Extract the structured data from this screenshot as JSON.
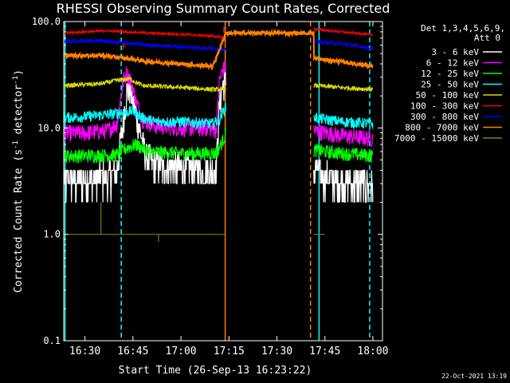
{
  "chart_data": {
    "type": "line",
    "title": "RHESSI Observing Summary Count Rates, Corrected",
    "xlabel": "Start Time (26-Sep-13 16:23:22)",
    "ylabel_main": "Corrected Count Rate (s",
    "ylabel_sup": "-1",
    "ylabel_end": " detector",
    "ylabel_sup2": "-1",
    "ylabel_close": ")",
    "y_scale": "log",
    "ylim": [
      0.1,
      100
    ],
    "xlim": [
      "16:23:22",
      "18:03:00"
    ],
    "x_ticks": [
      "16:30",
      "16:45",
      "17:00",
      "17:15",
      "17:30",
      "17:45",
      "18:00"
    ],
    "y_ticks": [
      "0.1",
      "1.0",
      "10.0",
      "100.0"
    ],
    "legend_title": [
      "Det 1,3,4,5,6,9,",
      "Att 0"
    ],
    "legend_placement": "right",
    "timestamp": "22-Oct-2021 13:19",
    "flags": [
      "F",
      "F"
    ],
    "gaps": [
      [
        "17:14:00",
        "17:41:30"
      ]
    ],
    "vlines": [
      {
        "time": "16:23:45",
        "color": "#00ffff",
        "style": "solid"
      },
      {
        "time": "16:41:20",
        "color": "#00ffff",
        "style": "dashed"
      },
      {
        "time": "17:13:50",
        "color": "#ff8000",
        "style": "solid"
      },
      {
        "time": "17:40:30",
        "color": "#ff8000",
        "style": "dashed"
      },
      {
        "time": "17:43:10",
        "color": "#00ffff",
        "style": "solid"
      },
      {
        "time": "17:59:00",
        "color": "#00ffff",
        "style": "dashed"
      }
    ],
    "series": [
      {
        "name": "3 - 6 keV",
        "color": "#ffffff",
        "points": [
          [
            "16:23:22",
            3.2
          ],
          [
            "16:30",
            3.2
          ],
          [
            "16:37",
            3.6
          ],
          [
            "16:40",
            4.0
          ],
          [
            "16:42",
            12
          ],
          [
            "16:43",
            22
          ],
          [
            "16:44",
            24
          ],
          [
            "16:45",
            18
          ],
          [
            "16:47",
            10
          ],
          [
            "16:49",
            5.5
          ],
          [
            "16:52",
            4.5
          ],
          [
            "17:00",
            4.2
          ],
          [
            "17:08",
            4.0
          ],
          [
            "17:11",
            3.8
          ],
          [
            "17:12",
            16
          ],
          [
            "17:13",
            25
          ],
          [
            "17:14",
            28
          ],
          [
            "17:41:30",
            4.0
          ],
          [
            "17:45",
            3.5
          ],
          [
            "17:55",
            3.0
          ],
          [
            "18:00",
            3.0
          ]
        ]
      },
      {
        "name": "6 - 12 keV",
        "color": "#ff00ff",
        "points": [
          [
            "16:23:22",
            9.0
          ],
          [
            "16:30",
            9.0
          ],
          [
            "16:37",
            9.5
          ],
          [
            "16:40",
            11
          ],
          [
            "16:42",
            28
          ],
          [
            "16:43",
            33
          ],
          [
            "16:44",
            30
          ],
          [
            "16:46",
            18
          ],
          [
            "16:48",
            12
          ],
          [
            "16:52",
            10.5
          ],
          [
            "17:00",
            10
          ],
          [
            "17:08",
            10
          ],
          [
            "17:11",
            9.5
          ],
          [
            "17:12",
            28
          ],
          [
            "17:13",
            35
          ],
          [
            "17:14",
            38
          ],
          [
            "17:41:30",
            9.5
          ],
          [
            "17:50",
            8.5
          ],
          [
            "18:00",
            8.0
          ]
        ]
      },
      {
        "name": "12 - 25 keV",
        "color": "#00ff00",
        "points": [
          [
            "16:23:22",
            5.5
          ],
          [
            "16:30",
            5.5
          ],
          [
            "16:40",
            5.6
          ],
          [
            "16:43",
            6.5
          ],
          [
            "16:46",
            7.0
          ],
          [
            "16:50",
            6.0
          ],
          [
            "17:00",
            5.8
          ],
          [
            "17:11",
            5.8
          ],
          [
            "17:13",
            7.5
          ],
          [
            "17:14",
            9.0
          ],
          [
            "17:41:30",
            6.2
          ],
          [
            "17:50",
            5.8
          ],
          [
            "18:00",
            5.5
          ]
        ]
      },
      {
        "name": "25 - 50 keV",
        "color": "#00ffff",
        "points": [
          [
            "16:23:22",
            12.5
          ],
          [
            "16:30",
            12.8
          ],
          [
            "16:38",
            13.5
          ],
          [
            "16:42",
            14
          ],
          [
            "16:45",
            14.5
          ],
          [
            "16:48",
            12.5
          ],
          [
            "16:52",
            11.5
          ],
          [
            "17:00",
            11.5
          ],
          [
            "17:10",
            11.0
          ],
          [
            "17:12",
            12
          ],
          [
            "17:14",
            16
          ],
          [
            "17:41:30",
            12.5
          ],
          [
            "17:50",
            11.5
          ],
          [
            "18:00",
            11.0
          ]
        ]
      },
      {
        "name": "50 - 100 keV",
        "color": "#d8d800",
        "points": [
          [
            "16:23:22",
            25
          ],
          [
            "16:35",
            26
          ],
          [
            "16:40",
            28
          ],
          [
            "16:44",
            29
          ],
          [
            "16:48",
            25
          ],
          [
            "17:00",
            24
          ],
          [
            "17:10",
            23
          ],
          [
            "17:14",
            23
          ],
          [
            "17:41:30",
            25
          ],
          [
            "17:50",
            24
          ],
          [
            "18:00",
            23
          ]
        ]
      },
      {
        "name": "100 - 300 keV",
        "color": "#ff0000",
        "points": [
          [
            "16:23:22",
            78
          ],
          [
            "16:30",
            80
          ],
          [
            "16:37",
            82
          ],
          [
            "16:43",
            80
          ],
          [
            "16:50",
            78
          ],
          [
            "17:00",
            76
          ],
          [
            "17:10",
            73
          ],
          [
            "17:14",
            70
          ],
          [
            "17:41:30",
            85
          ],
          [
            "17:50",
            80
          ],
          [
            "18:00",
            75
          ]
        ]
      },
      {
        "name": "300 - 800 keV",
        "color": "#0000ff",
        "points": [
          [
            "16:23:22",
            65
          ],
          [
            "16:35",
            66
          ],
          [
            "16:45",
            62
          ],
          [
            "16:50",
            60
          ],
          [
            "17:00",
            58
          ],
          [
            "17:10",
            56
          ],
          [
            "17:14",
            55
          ],
          [
            "17:41:30",
            65
          ],
          [
            "17:50",
            62
          ],
          [
            "18:00",
            56
          ]
        ]
      },
      {
        "name": "800 - 7000 keV",
        "color": "#ff8000",
        "points": [
          [
            "16:23:22",
            48
          ],
          [
            "16:35",
            48
          ],
          [
            "16:43",
            45
          ],
          [
            "16:50",
            42
          ],
          [
            "17:00",
            40
          ],
          [
            "17:10",
            38
          ],
          [
            "17:14",
            78
          ],
          [
            "17:41:30",
            78
          ],
          [
            "17:41:31",
            45
          ],
          [
            "17:50",
            42
          ],
          [
            "18:00",
            38
          ]
        ]
      },
      {
        "name": "7000 - 15000 keV",
        "color": "#808000",
        "points": [
          [
            "16:23:22",
            1.0
          ],
          [
            "17:14",
            1.0
          ],
          [
            "17:41:30",
            1.0
          ],
          [
            "17:45",
            1.0
          ]
        ]
      }
    ]
  }
}
